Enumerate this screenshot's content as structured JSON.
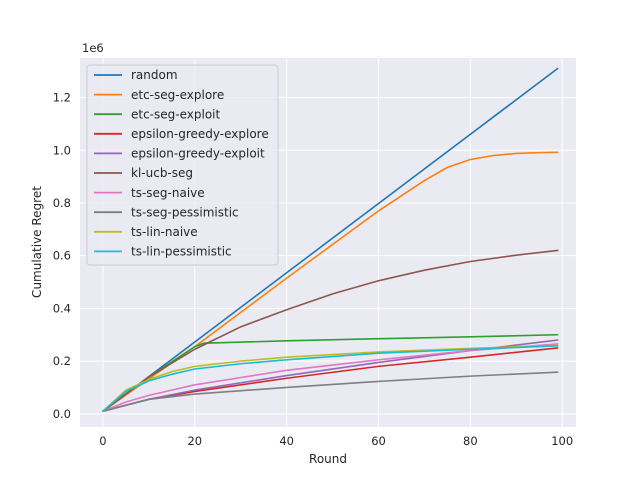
{
  "chart_data": {
    "type": "line",
    "title": "",
    "xlabel": "Round",
    "ylabel": "Cumulative Regret",
    "offset_text": "1e6",
    "xlim": [
      -5,
      103
    ],
    "ylim": [
      -0.05,
      1.35
    ],
    "xticks": [
      0,
      20,
      40,
      60,
      80,
      100
    ],
    "yticks": [
      0.0,
      0.2,
      0.4,
      0.6,
      0.8,
      1.0,
      1.2
    ],
    "ytick_labels": [
      "0.0",
      "0.2",
      "0.4",
      "0.6",
      "0.8",
      "1.0",
      "1.2"
    ],
    "grid": true,
    "legend_position": "upper-left",
    "style": "seaborn-darkgrid",
    "series": [
      {
        "name": "random",
        "color": "#1f77b4",
        "x": [
          0,
          99
        ],
        "y": [
          0.01,
          1.31
        ]
      },
      {
        "name": "etc-seg-explore",
        "color": "#ff7f0e",
        "x": [
          0,
          20,
          40,
          60,
          70,
          75,
          80,
          85,
          90,
          95,
          99
        ],
        "y": [
          0.01,
          0.255,
          0.515,
          0.77,
          0.885,
          0.935,
          0.965,
          0.98,
          0.988,
          0.991,
          0.992
        ]
      },
      {
        "name": "etc-seg-exploit",
        "color": "#2ca02c",
        "x": [
          0,
          10,
          20,
          22,
          40,
          60,
          80,
          99
        ],
        "y": [
          0.01,
          0.14,
          0.255,
          0.268,
          0.277,
          0.285,
          0.292,
          0.3
        ]
      },
      {
        "name": "epsilon-greedy-explore",
        "color": "#d62728",
        "x": [
          0,
          10,
          20,
          40,
          60,
          80,
          99
        ],
        "y": [
          0.01,
          0.055,
          0.085,
          0.135,
          0.18,
          0.215,
          0.25
        ]
      },
      {
        "name": "epsilon-greedy-exploit",
        "color": "#9467bd",
        "x": [
          0,
          10,
          20,
          40,
          60,
          80,
          99
        ],
        "y": [
          0.01,
          0.055,
          0.09,
          0.145,
          0.195,
          0.24,
          0.28
        ]
      },
      {
        "name": "kl-ucb-seg",
        "color": "#8c564b",
        "x": [
          0,
          10,
          20,
          30,
          40,
          50,
          60,
          70,
          80,
          90,
          99
        ],
        "y": [
          0.01,
          0.14,
          0.245,
          0.33,
          0.395,
          0.455,
          0.505,
          0.545,
          0.578,
          0.602,
          0.62
        ]
      },
      {
        "name": "ts-seg-naive",
        "color": "#e377c2",
        "x": [
          0,
          5,
          10,
          20,
          40,
          60,
          80,
          99
        ],
        "y": [
          0.01,
          0.045,
          0.07,
          0.11,
          0.165,
          0.205,
          0.24,
          0.265
        ]
      },
      {
        "name": "ts-seg-pessimistic",
        "color": "#7f7f7f",
        "x": [
          0,
          10,
          20,
          40,
          60,
          80,
          99
        ],
        "y": [
          0.01,
          0.055,
          0.075,
          0.1,
          0.123,
          0.143,
          0.158
        ]
      },
      {
        "name": "ts-lin-naive",
        "color": "#bcbd22",
        "x": [
          0,
          5,
          10,
          15,
          20,
          30,
          40,
          60,
          80,
          99
        ],
        "y": [
          0.01,
          0.09,
          0.13,
          0.16,
          0.18,
          0.2,
          0.215,
          0.235,
          0.248,
          0.26
        ]
      },
      {
        "name": "ts-lin-pessimistic",
        "color": "#17becf",
        "x": [
          0,
          5,
          10,
          15,
          20,
          30,
          40,
          60,
          80,
          99
        ],
        "y": [
          0.01,
          0.085,
          0.125,
          0.15,
          0.17,
          0.19,
          0.205,
          0.23,
          0.245,
          0.258
        ]
      }
    ]
  }
}
